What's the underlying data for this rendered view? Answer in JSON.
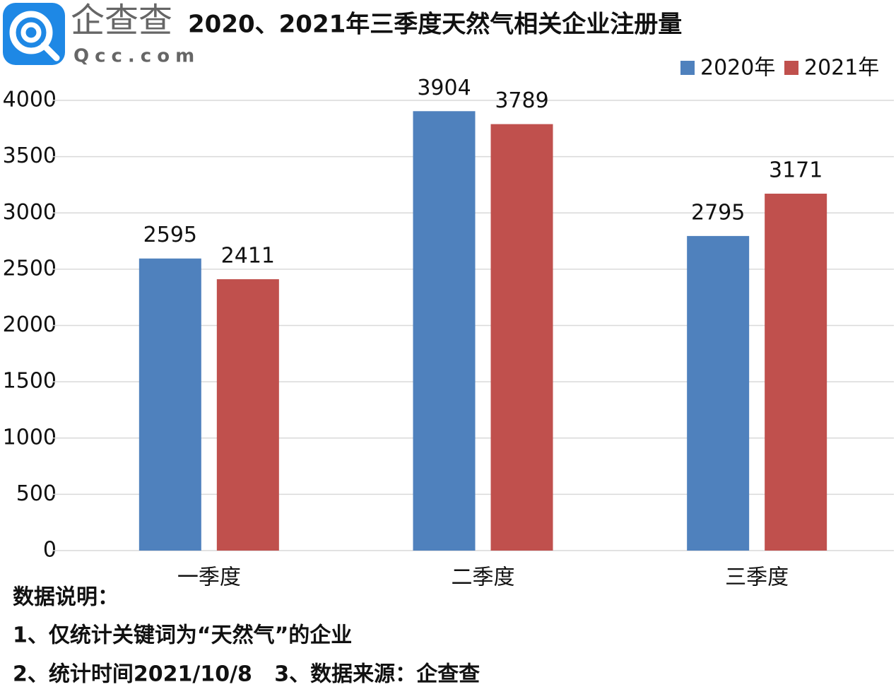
{
  "logo": {
    "name": "企查查",
    "domain": "Qcc.com"
  },
  "chart_data": {
    "type": "bar",
    "title": "2020、2021年三季度天然气相关企业注册量",
    "categories": [
      "一季度",
      "二季度",
      "三季度"
    ],
    "series": [
      {
        "name": "2020年",
        "color": "#4f81bd",
        "values": [
          2595,
          3904,
          2795
        ]
      },
      {
        "name": "2021年",
        "color": "#c0504d",
        "values": [
          2411,
          3789,
          3171
        ]
      }
    ],
    "ylim": [
      0,
      4000
    ],
    "yticks": [
      0,
      500,
      1000,
      1500,
      2000,
      2500,
      3000,
      3500,
      4000
    ],
    "grid": true,
    "legend": "top-right"
  },
  "notes": [
    "数据说明：",
    "1、仅统计关键词为“天然气”的企业",
    "2、统计时间2021/10/8   3、数据来源：企查查"
  ]
}
